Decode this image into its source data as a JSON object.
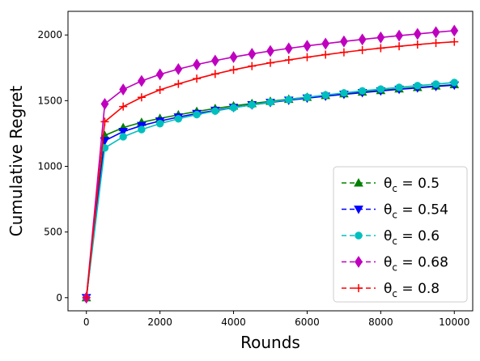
{
  "chart_data": {
    "type": "line",
    "title": "",
    "xlabel": "Rounds",
    "ylabel": "Cumulative Regret",
    "xlim": [
      -500,
      10500
    ],
    "ylim": [
      -100,
      2180
    ],
    "xticks": [
      0,
      2000,
      4000,
      6000,
      8000,
      10000
    ],
    "yticks": [
      0,
      500,
      1000,
      1500,
      2000
    ],
    "legend_position": "lower-right",
    "grid": false,
    "x": [
      0,
      500,
      1000,
      1500,
      2000,
      2500,
      3000,
      3500,
      4000,
      4500,
      5000,
      5500,
      6000,
      6500,
      7000,
      7500,
      8000,
      8500,
      9000,
      9500,
      10000
    ],
    "series": [
      {
        "name": "θc = 0.5",
        "legend_base": "θ",
        "legend_sub": "c",
        "legend_rest": " = 0.5",
        "color": "#008000",
        "marker": "triangle-up",
        "values": [
          0,
          1235,
          1295,
          1335,
          1365,
          1392,
          1418,
          1440,
          1460,
          1478,
          1495,
          1511,
          1526,
          1540,
          1553,
          1566,
          1578,
          1590,
          1601,
          1612,
          1622
        ]
      },
      {
        "name": "θc = 0.54",
        "legend_base": "θ",
        "legend_sub": "c",
        "legend_rest": " = 0.54",
        "color": "#0000ff",
        "marker": "triangle-down",
        "values": [
          0,
          1195,
          1265,
          1310,
          1345,
          1375,
          1402,
          1426,
          1448,
          1468,
          1486,
          1503,
          1519,
          1534,
          1548,
          1561,
          1574,
          1586,
          1597,
          1608,
          1618
        ]
      },
      {
        "name": "θc = 0.6",
        "legend_base": "θ",
        "legend_sub": "c",
        "legend_rest": " = 0.6",
        "color": "#00bfbf",
        "marker": "circle",
        "values": [
          0,
          1140,
          1225,
          1280,
          1325,
          1362,
          1394,
          1421,
          1446,
          1468,
          1489,
          1508,
          1526,
          1543,
          1559,
          1574,
          1588,
          1601,
          1614,
          1626,
          1638
        ]
      },
      {
        "name": "θc = 0.68",
        "legend_base": "θ",
        "legend_sub": "c",
        "legend_rest": " = 0.68",
        "color": "#bf00bf",
        "marker": "diamond",
        "values": [
          0,
          1475,
          1585,
          1650,
          1700,
          1740,
          1775,
          1805,
          1832,
          1856,
          1878,
          1898,
          1917,
          1934,
          1951,
          1966,
          1981,
          1995,
          2008,
          2021,
          2033
        ]
      },
      {
        "name": "θc = 0.8",
        "legend_base": "θ",
        "legend_sub": "c",
        "legend_rest": " = 0.8",
        "color": "#ff0000",
        "marker": "plus",
        "values": [
          0,
          1340,
          1455,
          1525,
          1582,
          1628,
          1668,
          1703,
          1735,
          1763,
          1788,
          1810,
          1831,
          1850,
          1868,
          1885,
          1900,
          1914,
          1927,
          1939,
          1948
        ]
      }
    ]
  }
}
